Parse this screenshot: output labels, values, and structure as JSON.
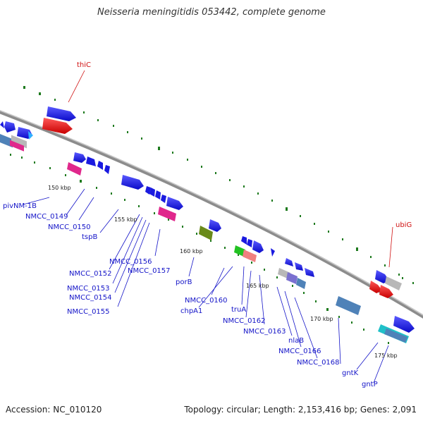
{
  "title": "Neisseria meningitidis 053442, complete genome",
  "footer": {
    "accession": "Accession: NC_010120",
    "summary": "Topology: circular; Length: 2,153,416 bp; Genes: 2,091"
  },
  "scale_labels": [
    "150 kbp",
    "155 kbp",
    "160 kbp",
    "165 kbp",
    "170 kbp",
    "175 kbp"
  ],
  "gene_labels": {
    "thiC": "thiC",
    "ubiG": "ubiG",
    "pivNM_1B": "pivNM-1B",
    "NMCC_0149": "NMCC_0149",
    "NMCC_0150": "NMCC_0150",
    "tspB": "tspB",
    "NMCC_0156": "NMCC_0156",
    "NMCC_0157": "NMCC_0157",
    "NMCC_0152": "NMCC_0152",
    "NMCC_0153": "NMCC_0153",
    "NMCC_0154": "NMCC_0154",
    "NMCC_0155": "NMCC_0155",
    "porB": "porB",
    "NMCC_0160": "NMCC_0160",
    "chpA1": "chpA1",
    "truA": "truA",
    "NMCC_0162": "NMCC_0162",
    "NMCC_0163": "NMCC_0163",
    "nlaB": "nlaB",
    "NMCC_0166": "NMCC_0166",
    "NMCC_0168": "NMCC_0168",
    "gntK": "gntK",
    "gntP": "gntP"
  },
  "colors": {
    "gene_blue": "#1a1ae0",
    "gene_red": "#e01010",
    "magenta": "#e0288c",
    "grey": "#b8b8b8",
    "steel": "#4f82b8",
    "cyan": "#20c0c8",
    "olive": "#6a8a1a",
    "green": "#22c222",
    "salmon": "#f08080",
    "purple": "#7a70d0",
    "tick_green": "#1e7a1e",
    "backbone": "#8c8c8c",
    "label_blue": "#1414c8",
    "label_red": "#d01010"
  }
}
